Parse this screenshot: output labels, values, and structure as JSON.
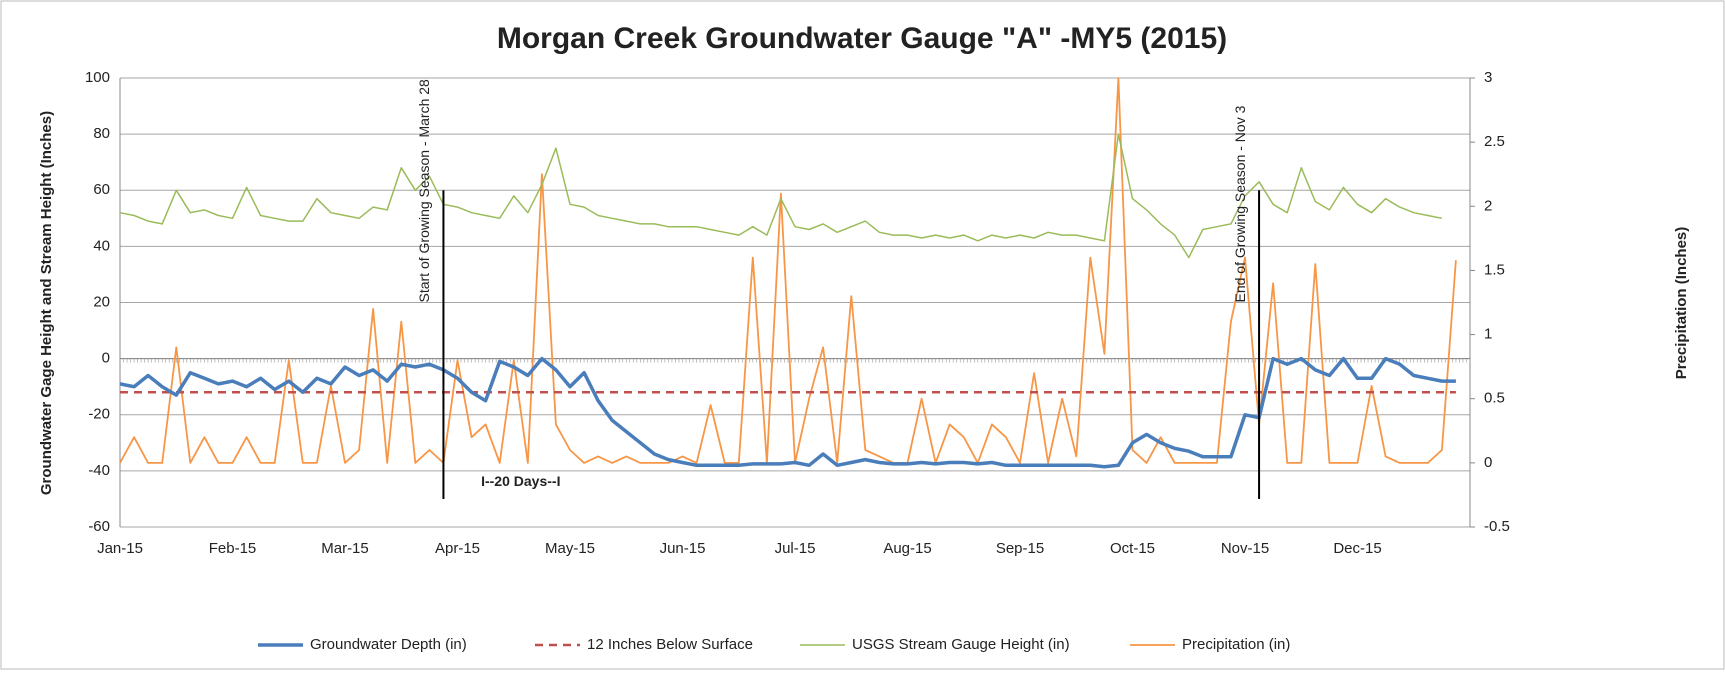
{
  "chart_data": {
    "type": "line",
    "title": "Morgan Creek Groundwater Gauge \"A\" -MY5 (2015)",
    "y_label": "Groundwater Gage Height and Stream Height (Inches)",
    "y2_label": "Precipitation (Inches)",
    "annotations": [
      "Start of Growing Season  - March 28",
      "End of Growing Season - Nov 3",
      "I--20 Days--I"
    ],
    "categories": [
      "Jan-15",
      null,
      null,
      null,
      null,
      null,
      null,
      null,
      "Feb-15",
      null,
      null,
      null,
      null,
      null,
      null,
      null,
      "Mar-15",
      null,
      null,
      null,
      null,
      null,
      null,
      null,
      "Apr-15",
      null,
      null,
      null,
      null,
      null,
      null,
      null,
      "May-15",
      null,
      null,
      null,
      null,
      null,
      null,
      null,
      "Jun-15",
      null,
      null,
      null,
      null,
      null,
      null,
      null,
      "Jul-15",
      null,
      null,
      null,
      null,
      null,
      null,
      null,
      "Aug-15",
      null,
      null,
      null,
      null,
      null,
      null,
      null,
      "Sep-15",
      null,
      null,
      null,
      null,
      null,
      null,
      null,
      "Oct-15",
      null,
      null,
      null,
      null,
      null,
      null,
      null,
      "Nov-15",
      null,
      null,
      null,
      null,
      null,
      null,
      null,
      "Dec-15",
      null,
      null,
      null,
      null,
      null,
      null,
      null
    ],
    "ylim": [
      -60,
      100
    ],
    "yticks": [
      -60,
      -40,
      -20,
      0,
      20,
      40,
      60,
      80,
      100
    ],
    "y2lim": [
      -0.5,
      3
    ],
    "y2ticks": [
      -0.5,
      0,
      0.5,
      1,
      1.5,
      2,
      2.5,
      3
    ],
    "grid": true,
    "series": [
      {
        "name": "Groundwater Depth (in)",
        "color": "#4a7ebb",
        "values": [
          -9,
          -10,
          -6,
          -10,
          -13,
          -5,
          -7,
          -9,
          -8,
          -10,
          -7,
          -11,
          -8,
          -12,
          -7,
          -9,
          -3,
          -6,
          -4,
          -8,
          -2,
          -3,
          -2,
          -4,
          -7,
          -12,
          -15,
          -1,
          -3,
          -6,
          0,
          -4,
          -10,
          -5,
          -15,
          -22,
          -26,
          -30,
          -34,
          -36,
          -37,
          -38,
          -38,
          -38,
          -38,
          -37.5,
          -37.5,
          -37.5,
          -37,
          -38,
          -34,
          -38,
          -37,
          -36,
          -37,
          -37.5,
          -37.5,
          -37,
          -37.5,
          -37,
          -37,
          -37.5,
          -37,
          -38,
          -38,
          -38,
          -38,
          -38,
          -38,
          -38,
          -38.5,
          -38,
          -30,
          -27,
          -30,
          -32,
          -33,
          -35,
          -35,
          -35,
          -20,
          -21,
          0,
          -2,
          0,
          -4,
          -6,
          0,
          -7,
          -7,
          0,
          -2,
          -6,
          -7,
          -8,
          -8
        ]
      },
      {
        "name": "12 Inches Below Surface",
        "color": "#c0504d",
        "values": [
          -12,
          -12,
          -12,
          -12,
          -12,
          -12,
          -12,
          -12,
          -12,
          -12,
          -12,
          -12,
          -12,
          -12,
          -12,
          -12,
          -12,
          -12,
          -12,
          -12,
          -12,
          -12,
          -12,
          -12,
          -12,
          -12,
          -12,
          -12,
          -12,
          -12,
          -12,
          -12,
          -12,
          -12,
          -12,
          -12,
          -12,
          -12,
          -12,
          -12,
          -12,
          -12,
          -12,
          -12,
          -12,
          -12,
          -12,
          -12,
          -12,
          -12,
          -12,
          -12,
          -12,
          -12,
          -12,
          -12,
          -12,
          -12,
          -12,
          -12,
          -12,
          -12,
          -12,
          -12,
          -12,
          -12,
          -12,
          -12,
          -12,
          -12,
          -12,
          -12,
          -12,
          -12,
          -12,
          -12,
          -12,
          -12,
          -12,
          -12,
          -12,
          -12,
          -12,
          -12,
          -12,
          -12,
          -12,
          -12,
          -12,
          -12,
          -12,
          -12,
          -12,
          -12,
          -12,
          -12
        ]
      },
      {
        "name": "USGS Stream Gauge Height (in)",
        "color": "#9bbb59",
        "values": [
          52,
          51,
          49,
          48,
          60,
          52,
          53,
          51,
          50,
          61,
          51,
          50,
          49,
          49,
          57,
          52,
          51,
          50,
          54,
          53,
          68,
          60,
          65,
          55,
          54,
          52,
          51,
          50,
          58,
          52,
          62,
          75,
          55,
          54,
          51,
          50,
          49,
          48,
          48,
          47,
          47,
          47,
          46,
          45,
          44,
          47,
          44,
          57,
          47,
          46,
          48,
          45,
          47,
          49,
          45,
          44,
          44,
          43,
          44,
          43,
          44,
          42,
          44,
          43,
          44,
          43,
          45,
          44,
          44,
          43,
          42,
          80,
          57,
          53,
          48,
          44,
          36,
          46,
          47,
          48,
          58,
          63,
          55,
          52,
          68,
          56,
          53,
          61,
          55,
          52,
          57,
          54,
          52,
          51,
          50,
          null
        ]
      },
      {
        "name": "Precipitation (in)",
        "color": "#f79646",
        "axis": "y2",
        "values": [
          0,
          0.2,
          0,
          0,
          0.9,
          0,
          0.2,
          0,
          0,
          0.2,
          0,
          0,
          0.8,
          0,
          0,
          0.6,
          0,
          0.1,
          1.2,
          0,
          1.1,
          0,
          0.1,
          0,
          0.8,
          0.2,
          0.3,
          0,
          0.8,
          0,
          2.25,
          0.3,
          0.1,
          0,
          0.05,
          0,
          0.05,
          0,
          0,
          0,
          0.05,
          0,
          0.45,
          0,
          0,
          1.6,
          0,
          2.1,
          0,
          0.5,
          0.9,
          0,
          1.3,
          0.1,
          0.05,
          0,
          0,
          0.5,
          0,
          0.3,
          0.2,
          0,
          0.3,
          0.2,
          0,
          0.7,
          0,
          0.5,
          0.05,
          1.6,
          0.85,
          3,
          0.1,
          0,
          0.2,
          0,
          0,
          0,
          0,
          1.1,
          1.6,
          0.3,
          1.4,
          0,
          0,
          1.55,
          0,
          0,
          0,
          0.6,
          0.05,
          0,
          0,
          0,
          0.1,
          1.58
        ]
      }
    ]
  }
}
